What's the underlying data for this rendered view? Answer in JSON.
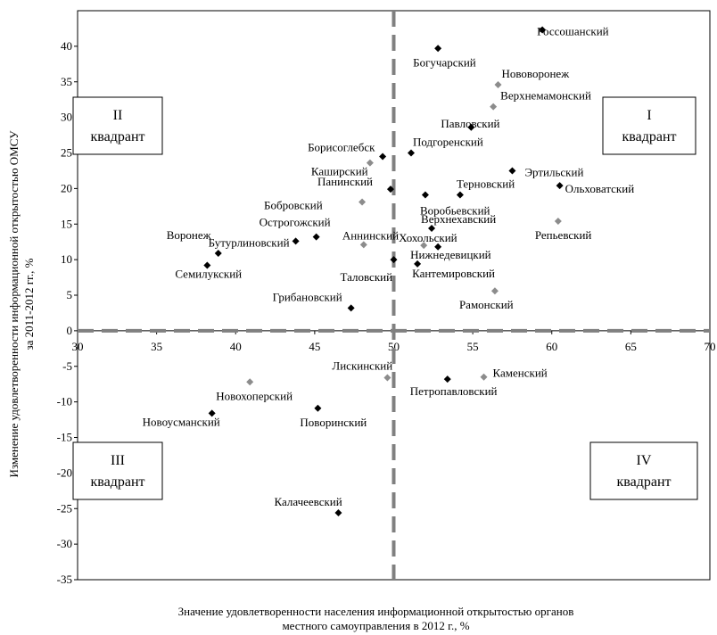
{
  "chart_data": {
    "type": "scatter",
    "xlabel": "Значение удовлетворенности населения информационной открытостью органов местного самоуправления  в 2012 г., %",
    "xlabel_lines": [
      "Значение удовлетворенности населения информационной открытостью органов",
      "местного самоуправления  в 2012 г., %"
    ],
    "ylabel": "Изменение удовлетворенности информационной открытостью ОМСУ за 2011-2012 гг., %",
    "ylabel_lines": [
      "Изменение удовлетворенности информационной открытостью ОМСУ",
      "за 2011-2012 гг., %"
    ],
    "xlim": [
      30,
      70
    ],
    "ylim": [
      -35,
      45
    ],
    "xticks": [
      30,
      35,
      40,
      45,
      50,
      55,
      60,
      65,
      70
    ],
    "yticks": [
      -35,
      -30,
      -25,
      -20,
      -15,
      -10,
      -5,
      0,
      5,
      10,
      15,
      20,
      25,
      30,
      35,
      40
    ],
    "divider_x": 50,
    "divider_y": 0,
    "quadrants": [
      {
        "id": "I",
        "line1": "I",
        "line2": "квадрант"
      },
      {
        "id": "II",
        "line1": "II",
        "line2": "квадрант"
      },
      {
        "id": "III",
        "line1": "III",
        "line2": "квадрант"
      },
      {
        "id": "IV",
        "line1": "IV",
        "line2": "квадрант"
      }
    ],
    "colors": {
      "black": "#000000",
      "gray": "#8c8c8c",
      "divider": "#808080"
    },
    "points": [
      {
        "label": "Россошанский",
        "x": 59.4,
        "y": 42.3,
        "color": "black"
      },
      {
        "label": "Богучарский",
        "x": 52.8,
        "y": 39.7,
        "color": "black"
      },
      {
        "label": "Нововоронеж",
        "x": 56.6,
        "y": 34.6,
        "color": "gray"
      },
      {
        "label": "Верхнемамонский",
        "x": 56.3,
        "y": 31.5,
        "color": "gray"
      },
      {
        "label": "Павловский",
        "x": 54.9,
        "y": 28.6,
        "color": "black"
      },
      {
        "label": "Борисоглебск",
        "x": 49.3,
        "y": 24.5,
        "color": "black"
      },
      {
        "label": "Подгоренский",
        "x": 51.1,
        "y": 25.0,
        "color": "black"
      },
      {
        "label": "Каширский",
        "x": 48.5,
        "y": 23.6,
        "color": "gray"
      },
      {
        "label": "Эртильский",
        "x": 57.5,
        "y": 22.5,
        "color": "black"
      },
      {
        "label": "Ольховатский",
        "x": 60.5,
        "y": 20.4,
        "color": "black"
      },
      {
        "label": "Панинский",
        "x": 49.8,
        "y": 19.9,
        "color": "black"
      },
      {
        "label": "Терновский",
        "x": 54.2,
        "y": 19.1,
        "color": "black"
      },
      {
        "label": "Воробьевский",
        "x": 52.0,
        "y": 19.1,
        "color": "black"
      },
      {
        "label": "Бобровский",
        "x": 48.0,
        "y": 18.1,
        "color": "gray"
      },
      {
        "label": "Верхнехавский",
        "x": 52.4,
        "y": 14.4,
        "color": "black"
      },
      {
        "label": "Репьевский",
        "x": 60.4,
        "y": 15.4,
        "color": "gray"
      },
      {
        "label": "Острогожский",
        "x": 45.1,
        "y": 13.2,
        "color": "black"
      },
      {
        "label": "Воронеж",
        "x": 38.9,
        "y": 10.9,
        "color": "black"
      },
      {
        "label": "Бутурлиновский",
        "x": 43.8,
        "y": 12.6,
        "color": "black"
      },
      {
        "label": "Аннинский",
        "x": 48.1,
        "y": 12.1,
        "color": "gray"
      },
      {
        "label": "Хохольский",
        "x": 52.8,
        "y": 11.8,
        "color": "black"
      },
      {
        "label": "Лискинский-гр",
        "x": 51.9,
        "y": 12.0,
        "color": "gray",
        "hide_label": true
      },
      {
        "label": "Семилукский",
        "x": 38.2,
        "y": 9.2,
        "color": "black"
      },
      {
        "label": "Таловский",
        "x": 50.0,
        "y": 10.0,
        "color": "black"
      },
      {
        "label": "Нижнедевицкий",
        "x": 51.5,
        "y": 9.4,
        "color": "black"
      },
      {
        "label": "Кантемировский",
        "x": 51.5,
        "y": 9.4,
        "color": "black",
        "hide_marker": true
      },
      {
        "label": "Рамонский",
        "x": 56.4,
        "y": 5.6,
        "color": "gray"
      },
      {
        "label": "Грибановский",
        "x": 47.3,
        "y": 3.2,
        "color": "black"
      },
      {
        "label": "Лискинский",
        "x": 49.6,
        "y": -6.6,
        "color": "gray"
      },
      {
        "label": "Каменский",
        "x": 55.7,
        "y": -6.5,
        "color": "gray"
      },
      {
        "label": "Петропавловский",
        "x": 53.4,
        "y": -6.8,
        "color": "black"
      },
      {
        "label": "Новохоперский",
        "x": 40.9,
        "y": -7.2,
        "color": "gray"
      },
      {
        "label": "Поворинский",
        "x": 45.2,
        "y": -10.9,
        "color": "black"
      },
      {
        "label": "Новоусманский",
        "x": 38.5,
        "y": -11.6,
        "color": "black"
      },
      {
        "label": "Калачеевский",
        "x": 46.5,
        "y": -25.6,
        "color": "black"
      }
    ]
  }
}
